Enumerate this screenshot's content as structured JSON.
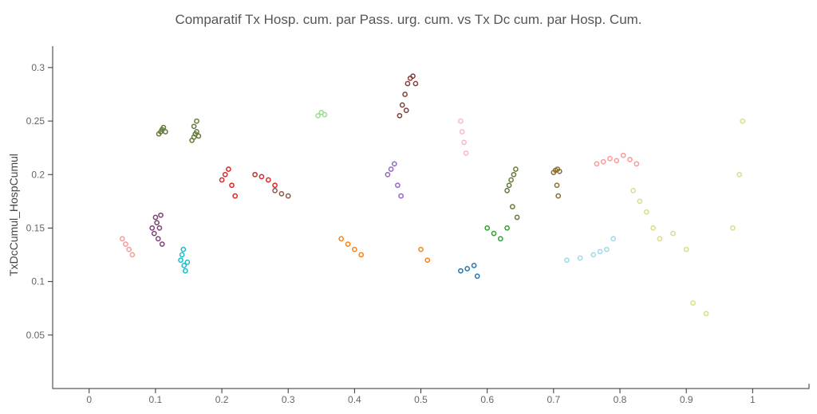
{
  "chart_data": {
    "type": "scatter",
    "title": "Comparatif Tx Hosp. cum. par Pass. urg. cum. vs Tx Dc cum. par Hosp. Cum.",
    "xlabel": "",
    "ylabel": "TxDcCumul_HospCumul",
    "xlim": [
      -0.055,
      1.085
    ],
    "ylim": [
      0.0,
      0.32
    ],
    "x_ticks": [
      "0",
      "0.1",
      "0.2",
      "0.3",
      "0.4",
      "0.5",
      "0.6",
      "0.7",
      "0.8",
      "0.9",
      "1"
    ],
    "y_ticks": [
      "0.05",
      "0.1",
      "0.15",
      "0.2",
      "0.25",
      "0.3"
    ],
    "grid": false,
    "legend": "none",
    "marker": "open-circle",
    "palette": [
      "#1f77b4",
      "#aec7e8",
      "#ff7f0e",
      "#ffbb78",
      "#2ca02c",
      "#98df8a",
      "#d62728",
      "#ff9896",
      "#9467bd",
      "#c5b0d5",
      "#8c564b",
      "#c49c94",
      "#e377c2",
      "#f7b6d2",
      "#7f7f7f",
      "#c7c7c7",
      "#bcbd22",
      "#dbdb8d",
      "#17becf",
      "#9edae5",
      "#393b79",
      "#637939",
      "#8c6d31",
      "#843c39",
      "#7b4173"
    ],
    "series": [
      {
        "color_index": 21,
        "points": [
          [
            0.105,
            0.238
          ],
          [
            0.108,
            0.24
          ],
          [
            0.11,
            0.242
          ],
          [
            0.112,
            0.244
          ],
          [
            0.115,
            0.24
          ]
        ]
      },
      {
        "color_index": 21,
        "points": [
          [
            0.155,
            0.232
          ],
          [
            0.158,
            0.235
          ],
          [
            0.16,
            0.238
          ],
          [
            0.162,
            0.24
          ],
          [
            0.165,
            0.236
          ],
          [
            0.158,
            0.245
          ],
          [
            0.162,
            0.25
          ]
        ]
      },
      {
        "color_index": 24,
        "points": [
          [
            0.095,
            0.15
          ],
          [
            0.098,
            0.145
          ],
          [
            0.1,
            0.16
          ],
          [
            0.102,
            0.155
          ],
          [
            0.104,
            0.14
          ],
          [
            0.106,
            0.15
          ],
          [
            0.108,
            0.162
          ],
          [
            0.11,
            0.135
          ]
        ]
      },
      {
        "color_index": 18,
        "points": [
          [
            0.138,
            0.12
          ],
          [
            0.14,
            0.125
          ],
          [
            0.142,
            0.13
          ],
          [
            0.145,
            0.11
          ],
          [
            0.143,
            0.115
          ],
          [
            0.148,
            0.118
          ]
        ]
      },
      {
        "color_index": 22,
        "points": [
          [
            0.7,
            0.202
          ],
          [
            0.703,
            0.204
          ],
          [
            0.706,
            0.205
          ],
          [
            0.709,
            0.203
          ],
          [
            0.705,
            0.19
          ],
          [
            0.707,
            0.18
          ]
        ]
      },
      {
        "color_index": 21,
        "points": [
          [
            0.63,
            0.185
          ],
          [
            0.633,
            0.19
          ],
          [
            0.636,
            0.195
          ],
          [
            0.64,
            0.2
          ],
          [
            0.643,
            0.205
          ],
          [
            0.638,
            0.17
          ],
          [
            0.645,
            0.16
          ]
        ]
      },
      {
        "color_index": 7,
        "points": [
          [
            0.765,
            0.21
          ],
          [
            0.775,
            0.212
          ],
          [
            0.785,
            0.215
          ],
          [
            0.795,
            0.213
          ],
          [
            0.805,
            0.218
          ],
          [
            0.815,
            0.214
          ],
          [
            0.825,
            0.21
          ]
        ]
      },
      {
        "color_index": 23,
        "points": [
          [
            0.468,
            0.255
          ],
          [
            0.472,
            0.265
          ],
          [
            0.476,
            0.275
          ],
          [
            0.48,
            0.285
          ],
          [
            0.484,
            0.29
          ],
          [
            0.488,
            0.292
          ],
          [
            0.492,
            0.285
          ],
          [
            0.478,
            0.26
          ]
        ]
      },
      {
        "color_index": 5,
        "points": [
          [
            0.345,
            0.255
          ],
          [
            0.35,
            0.258
          ],
          [
            0.355,
            0.256
          ]
        ]
      },
      {
        "color_index": 19,
        "points": [
          [
            0.76,
            0.125
          ],
          [
            0.77,
            0.128
          ],
          [
            0.78,
            0.13
          ],
          [
            0.79,
            0.14
          ],
          [
            0.74,
            0.122
          ],
          [
            0.72,
            0.12
          ]
        ]
      },
      {
        "color_index": 6,
        "points": [
          [
            0.2,
            0.195
          ],
          [
            0.205,
            0.2
          ],
          [
            0.21,
            0.205
          ],
          [
            0.215,
            0.19
          ],
          [
            0.22,
            0.18
          ]
        ]
      },
      {
        "color_index": 6,
        "points": [
          [
            0.25,
            0.2
          ],
          [
            0.26,
            0.198
          ],
          [
            0.27,
            0.195
          ],
          [
            0.28,
            0.19
          ]
        ]
      },
      {
        "color_index": 17,
        "points": [
          [
            0.82,
            0.185
          ],
          [
            0.83,
            0.175
          ],
          [
            0.84,
            0.165
          ],
          [
            0.85,
            0.15
          ],
          [
            0.86,
            0.14
          ],
          [
            0.88,
            0.145
          ],
          [
            0.9,
            0.13
          ],
          [
            0.91,
            0.08
          ],
          [
            0.93,
            0.07
          ],
          [
            0.97,
            0.15
          ],
          [
            0.98,
            0.2
          ],
          [
            0.985,
            0.25
          ]
        ]
      },
      {
        "color_index": 0,
        "points": [
          [
            0.56,
            0.11
          ],
          [
            0.57,
            0.112
          ],
          [
            0.58,
            0.115
          ],
          [
            0.585,
            0.105
          ]
        ]
      },
      {
        "color_index": 4,
        "points": [
          [
            0.6,
            0.15
          ],
          [
            0.61,
            0.145
          ],
          [
            0.62,
            0.14
          ],
          [
            0.63,
            0.15
          ]
        ]
      },
      {
        "color_index": 7,
        "points": [
          [
            0.05,
            0.14
          ],
          [
            0.055,
            0.135
          ],
          [
            0.06,
            0.13
          ],
          [
            0.065,
            0.125
          ]
        ]
      },
      {
        "color_index": 13,
        "points": [
          [
            0.56,
            0.25
          ],
          [
            0.562,
            0.24
          ],
          [
            0.565,
            0.23
          ],
          [
            0.568,
            0.22
          ]
        ]
      },
      {
        "color_index": 8,
        "points": [
          [
            0.45,
            0.2
          ],
          [
            0.455,
            0.205
          ],
          [
            0.46,
            0.21
          ],
          [
            0.465,
            0.19
          ],
          [
            0.47,
            0.18
          ]
        ]
      },
      {
        "color_index": 2,
        "points": [
          [
            0.38,
            0.14
          ],
          [
            0.39,
            0.135
          ],
          [
            0.4,
            0.13
          ],
          [
            0.41,
            0.125
          ],
          [
            0.5,
            0.13
          ],
          [
            0.51,
            0.12
          ]
        ]
      },
      {
        "color_index": 10,
        "points": [
          [
            0.28,
            0.185
          ],
          [
            0.29,
            0.182
          ],
          [
            0.3,
            0.18
          ]
        ]
      }
    ]
  }
}
